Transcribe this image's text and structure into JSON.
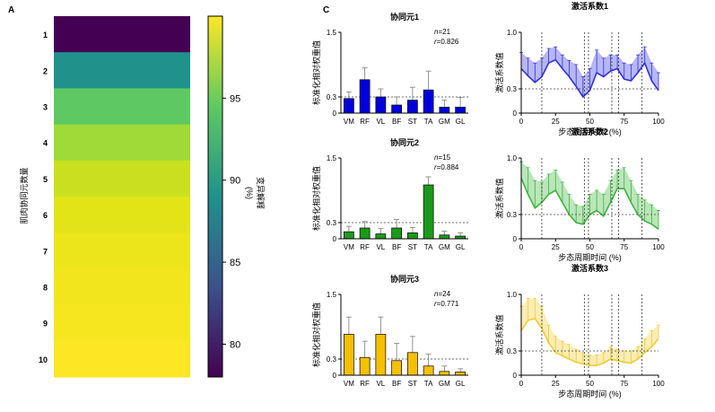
{
  "panels": {
    "a_label": "A",
    "c_label": "C"
  },
  "heatmap": {
    "ylabel": "肌肉协同元数量",
    "rows": [
      "1",
      "2",
      "3",
      "4",
      "5",
      "6",
      "7",
      "8",
      "9",
      "10"
    ],
    "values": [
      78.5,
      87.5,
      94.5,
      96.0,
      97.5,
      98.5,
      99.2,
      99.5,
      99.7,
      99.8
    ],
    "colors": [
      "#440154",
      "#21918c",
      "#5ec962",
      "#a0da39",
      "#c9e020",
      "#e2e418",
      "#ece51b",
      "#f2e51d",
      "#f6e620",
      "#fde725"
    ],
    "colorbar": {
      "ticks": [
        "95",
        "90",
        "85",
        "80"
      ],
      "tick_values": [
        95,
        90,
        85,
        80
      ],
      "range": [
        78,
        100
      ],
      "label_text": "变异解释",
      "label_unit": "(%)"
    }
  },
  "axis_titles": {
    "bar_y": "标准化相对权重值",
    "act_y": "激活系数值",
    "act_x": "步态周期时间 (%)"
  },
  "chart_data": [
    {
      "type": "bar",
      "title": "协同元1",
      "n_label": "n",
      "n_value": "=21",
      "r_label": "r",
      "r_value": "=0.826",
      "color": "#0000dd",
      "categories": [
        "VM",
        "RF",
        "VL",
        "BF",
        "ST",
        "TA",
        "GM",
        "GL"
      ],
      "values": [
        0.27,
        0.62,
        0.3,
        0.15,
        0.24,
        0.43,
        0.11,
        0.11
      ],
      "errors": [
        0.12,
        0.22,
        0.15,
        0.15,
        0.24,
        0.35,
        0.13,
        0.18
      ],
      "ylim": [
        0,
        1.5
      ],
      "yticks": [
        "0",
        "0.3",
        "1.5"
      ],
      "ytick_values": [
        0,
        0.3,
        1.5
      ],
      "ref_line": 0.3
    },
    {
      "type": "line",
      "title": "激活系数1",
      "color": "#3030e0",
      "ylim": [
        0,
        1.0
      ],
      "yticks": [
        "0",
        "0.3",
        "1.0"
      ],
      "ytick_values": [
        0,
        0.3,
        1.0
      ],
      "xticks": [
        "0",
        "25",
        "50",
        "75",
        "100"
      ],
      "xtick_values": [
        0,
        25,
        50,
        75,
        100
      ],
      "ref_line": 0.3,
      "vlines": [
        15,
        46,
        49,
        66,
        71,
        88
      ],
      "x": [
        0,
        5,
        10,
        15,
        20,
        25,
        30,
        35,
        40,
        45,
        50,
        55,
        60,
        65,
        70,
        75,
        80,
        85,
        90,
        95,
        100
      ],
      "mean": [
        0.55,
        0.46,
        0.38,
        0.45,
        0.62,
        0.66,
        0.55,
        0.45,
        0.33,
        0.2,
        0.28,
        0.5,
        0.45,
        0.52,
        0.55,
        0.42,
        0.4,
        0.5,
        0.62,
        0.4,
        0.28
      ],
      "upper": [
        0.75,
        0.68,
        0.62,
        0.68,
        0.8,
        0.82,
        0.72,
        0.65,
        0.6,
        0.45,
        0.55,
        0.78,
        0.68,
        0.72,
        0.72,
        0.62,
        0.6,
        0.72,
        0.82,
        0.62,
        0.5
      ]
    },
    {
      "type": "bar",
      "title": "协同元2",
      "n_label": "n",
      "n_value": "=15",
      "r_label": "r",
      "r_value": "=0.884",
      "color": "#1a9a1a",
      "categories": [
        "VM",
        "RF",
        "VL",
        "BF",
        "ST",
        "TA",
        "GM",
        "GL"
      ],
      "values": [
        0.13,
        0.2,
        0.09,
        0.2,
        0.11,
        1.0,
        0.07,
        0.05
      ],
      "errors": [
        0.1,
        0.12,
        0.1,
        0.16,
        0.1,
        0.15,
        0.07,
        0.06
      ],
      "ylim": [
        0,
        1.5
      ],
      "yticks": [
        "0",
        "0.3",
        "1.5"
      ],
      "ytick_values": [
        0,
        0.3,
        1.5
      ],
      "ref_line": 0.3
    },
    {
      "type": "line",
      "title": "激活系数2",
      "color": "#3cb43c",
      "ylim": [
        0,
        1.0
      ],
      "yticks": [
        "0",
        "0.3",
        "1.0"
      ],
      "ytick_values": [
        0,
        0.3,
        1.0
      ],
      "xticks": [
        "0",
        "25",
        "50",
        "75",
        "100"
      ],
      "xtick_values": [
        0,
        25,
        50,
        75,
        100
      ],
      "ref_line": 0.3,
      "vlines": [
        15,
        46,
        49,
        66,
        71,
        88
      ],
      "x": [
        0,
        5,
        10,
        15,
        20,
        25,
        30,
        35,
        40,
        45,
        50,
        55,
        60,
        65,
        70,
        75,
        80,
        85,
        90,
        95,
        100
      ],
      "mean": [
        0.75,
        0.55,
        0.38,
        0.45,
        0.55,
        0.6,
        0.45,
        0.3,
        0.2,
        0.18,
        0.3,
        0.35,
        0.28,
        0.45,
        0.62,
        0.62,
        0.45,
        0.3,
        0.22,
        0.18,
        0.12
      ],
      "upper": [
        0.95,
        0.88,
        0.72,
        0.7,
        0.8,
        0.85,
        0.7,
        0.55,
        0.42,
        0.4,
        0.55,
        0.6,
        0.55,
        0.72,
        0.85,
        0.88,
        0.72,
        0.55,
        0.48,
        0.42,
        0.35
      ]
    },
    {
      "type": "bar",
      "title": "协同元3",
      "n_label": "n",
      "n_value": "=24",
      "r_label": "r",
      "r_value": "=0.771",
      "color": "#f5c000",
      "categories": [
        "VM",
        "RF",
        "VL",
        "BF",
        "ST",
        "TA",
        "GM",
        "GL"
      ],
      "values": [
        0.76,
        0.33,
        0.76,
        0.27,
        0.42,
        0.17,
        0.07,
        0.06
      ],
      "errors": [
        0.32,
        0.3,
        0.32,
        0.32,
        0.3,
        0.22,
        0.1,
        0.06
      ],
      "ylim": [
        0,
        1.5
      ],
      "yticks": [
        "0",
        "0.3",
        "1.5"
      ],
      "ytick_values": [
        0,
        0.3,
        1.5
      ],
      "ref_line": 0.3
    },
    {
      "type": "line",
      "title": "激活系数3",
      "color": "#f0cc30",
      "ylim": [
        0,
        1.0
      ],
      "yticks": [
        "0",
        "0.3",
        "1.0"
      ],
      "ytick_values": [
        0,
        0.3,
        1.0
      ],
      "xticks": [
        "0",
        "25",
        "50",
        "75",
        "100"
      ],
      "xtick_values": [
        0,
        25,
        50,
        75,
        100
      ],
      "ref_line": 0.3,
      "vlines": [
        15,
        46,
        49,
        66,
        71,
        88
      ],
      "x": [
        0,
        5,
        10,
        15,
        20,
        25,
        30,
        35,
        40,
        45,
        50,
        55,
        60,
        65,
        70,
        75,
        80,
        85,
        90,
        95,
        100
      ],
      "mean": [
        0.55,
        0.68,
        0.7,
        0.58,
        0.4,
        0.28,
        0.24,
        0.2,
        0.16,
        0.14,
        0.12,
        0.12,
        0.15,
        0.2,
        0.18,
        0.16,
        0.15,
        0.2,
        0.28,
        0.35,
        0.45
      ],
      "upper": [
        0.85,
        0.95,
        0.95,
        0.85,
        0.62,
        0.48,
        0.42,
        0.38,
        0.32,
        0.28,
        0.25,
        0.25,
        0.28,
        0.35,
        0.32,
        0.3,
        0.3,
        0.35,
        0.45,
        0.55,
        0.62
      ]
    }
  ]
}
